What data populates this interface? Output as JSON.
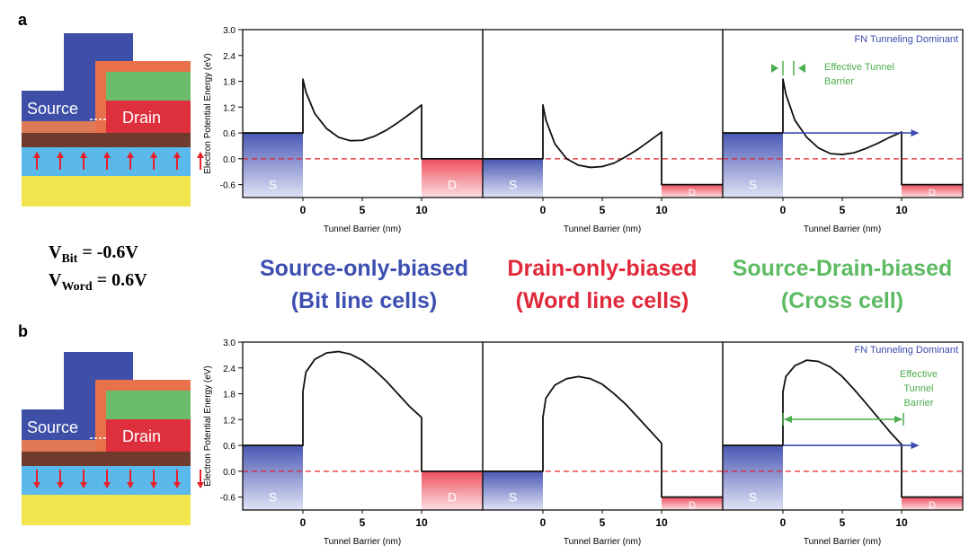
{
  "panel_letters": [
    "a",
    "b"
  ],
  "device": {
    "source_label": "Source",
    "drain_label": "Drain",
    "colors": {
      "gate": "#3e4fa8",
      "orange": "#e8704a",
      "green": "#6cbd6b",
      "drain": "#de2f3c",
      "source": "#3e4fa8",
      "channel_top": "#e07a56",
      "brown": "#6e3b2d",
      "blue_layer": "#5ab8ea",
      "yellow": "#f1e54e",
      "arrow": "#e8202a"
    }
  },
  "voltages": {
    "bit": {
      "prefix": "V",
      "sub": "Bit",
      "value": " = -0.6V"
    },
    "word": {
      "prefix": "V",
      "sub": "Word",
      "value": " = 0.6V"
    }
  },
  "categories": [
    {
      "line1": "Source-only-biased",
      "line2": "(Bit line cells)",
      "color": "#3d4fb0"
    },
    {
      "line1": "Drain-only-biased",
      "line2": "(Word line cells)",
      "color": "#e0293a"
    },
    {
      "line1": "Source-Drain-biased",
      "line2": "(Cross cell)",
      "color": "#5dbb63"
    }
  ],
  "annotations": {
    "fn_dominant": "FN Tunneling Dominant",
    "effective_a": [
      "Effective Tunnel",
      "Barrier"
    ],
    "effective_b": [
      "Effective",
      "Tunnel",
      "Barrier"
    ],
    "contact_s": "S",
    "contact_d": "D"
  },
  "colors": {
    "fn_text": "#3b4bb0",
    "green_annot": "#4cae4f",
    "arrow_blue": "#3b4bb0",
    "dashed_red": "#e0202a"
  },
  "chart_data": [
    {
      "type": "line",
      "panel": "a",
      "ylabel": "Electron Potential Energy (eV)",
      "xlabel": "Tunnel Barrier (nm)",
      "ylim": [
        -0.9,
        3.0
      ],
      "yticks": [
        "3.0",
        "2.4",
        "1.8",
        "1.2",
        "0.6",
        "0.0",
        "-0.6"
      ],
      "xticks": [
        "0",
        "5",
        "10"
      ],
      "dashed_level": 0.0,
      "subplots": [
        {
          "name": "Source-only-biased",
          "source_level": 0.6,
          "drain_level": 0.0,
          "curve": {
            "x": [
              0,
              0.25,
              1,
              2,
              3,
              4,
              5,
              6,
              7,
              8,
              9,
              10
            ],
            "y": [
              1.85,
              1.55,
              1.05,
              0.7,
              0.5,
              0.42,
              0.43,
              0.52,
              0.66,
              0.84,
              1.04,
              1.25
            ]
          }
        },
        {
          "name": "Drain-only-biased",
          "source_level": 0.0,
          "drain_level": -0.6,
          "curve": {
            "x": [
              0,
              0.25,
              1,
              2,
              3,
              4,
              5,
              6,
              7,
              8,
              9,
              10
            ],
            "y": [
              1.25,
              0.9,
              0.35,
              0.0,
              -0.15,
              -0.2,
              -0.18,
              -0.1,
              0.05,
              0.22,
              0.42,
              0.62
            ]
          }
        },
        {
          "name": "Source-Drain-biased",
          "source_level": 0.6,
          "drain_level": -0.6,
          "curve": {
            "x": [
              0,
              0.25,
              1,
              2,
              3,
              4,
              5,
              6,
              7,
              8,
              9,
              10
            ],
            "y": [
              1.85,
              1.5,
              0.9,
              0.5,
              0.25,
              0.12,
              0.1,
              0.14,
              0.24,
              0.36,
              0.5,
              0.62
            ]
          }
        }
      ]
    },
    {
      "type": "line",
      "panel": "b",
      "ylabel": "Electron Potential Energy (eV)",
      "xlabel": "Tunnel Barrier (nm)",
      "ylim": [
        -0.9,
        3.0
      ],
      "yticks": [
        "3.0",
        "2.4",
        "1.8",
        "1.2",
        "0.6",
        "0.0",
        "-0.6"
      ],
      "xticks": [
        "0",
        "5",
        "10"
      ],
      "dashed_level": 0.0,
      "subplots": [
        {
          "name": "Source-only-biased",
          "source_level": 0.6,
          "drain_level": 0.0,
          "curve": {
            "x": [
              0,
              0.25,
              1,
              2,
              3,
              4,
              5,
              6,
              7,
              8,
              9,
              10
            ],
            "y": [
              1.85,
              2.3,
              2.6,
              2.75,
              2.78,
              2.72,
              2.58,
              2.36,
              2.1,
              1.8,
              1.5,
              1.25
            ]
          }
        },
        {
          "name": "Drain-only-biased",
          "source_level": 0.0,
          "drain_level": -0.6,
          "curve": {
            "x": [
              0,
              0.25,
              1,
              2,
              3,
              4,
              5,
              6,
              7,
              8,
              9,
              10
            ],
            "y": [
              1.25,
              1.7,
              2.0,
              2.15,
              2.2,
              2.15,
              2.02,
              1.8,
              1.55,
              1.25,
              0.95,
              0.65
            ]
          }
        },
        {
          "name": "Source-Drain-biased",
          "source_level": 0.6,
          "drain_level": -0.6,
          "curve": {
            "x": [
              0,
              0.25,
              1,
              2,
              3,
              4,
              5,
              6,
              7,
              8,
              9,
              10
            ],
            "y": [
              1.85,
              2.2,
              2.45,
              2.58,
              2.55,
              2.42,
              2.2,
              1.9,
              1.58,
              1.25,
              0.92,
              0.62
            ]
          }
        }
      ]
    }
  ]
}
